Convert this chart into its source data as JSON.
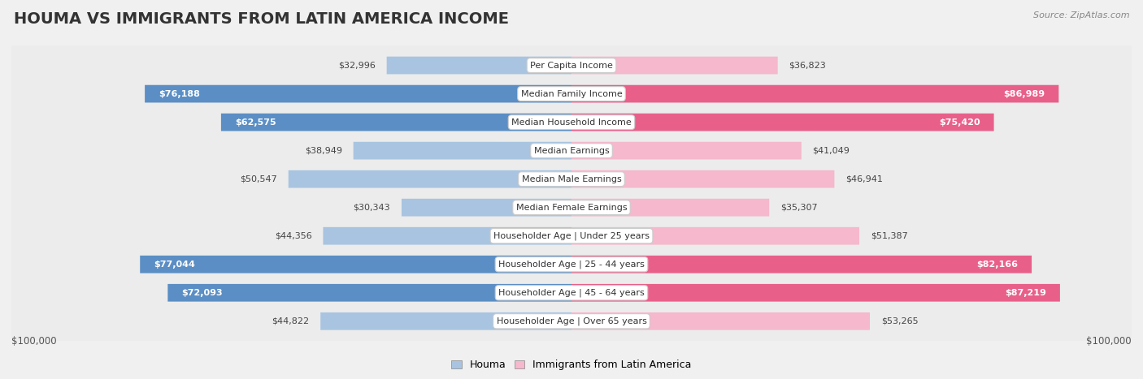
{
  "title": "HOUMA VS IMMIGRANTS FROM LATIN AMERICA INCOME",
  "source": "Source: ZipAtlas.com",
  "categories": [
    "Per Capita Income",
    "Median Family Income",
    "Median Household Income",
    "Median Earnings",
    "Median Male Earnings",
    "Median Female Earnings",
    "Householder Age | Under 25 years",
    "Householder Age | 25 - 44 years",
    "Householder Age | 45 - 64 years",
    "Householder Age | Over 65 years"
  ],
  "houma_values": [
    32996,
    76188,
    62575,
    38949,
    50547,
    30343,
    44356,
    77044,
    72093,
    44822
  ],
  "immigrant_values": [
    36823,
    86989,
    75420,
    41049,
    46941,
    35307,
    51387,
    82166,
    87219,
    53265
  ],
  "houma_labels": [
    "$32,996",
    "$76,188",
    "$62,575",
    "$38,949",
    "$50,547",
    "$30,343",
    "$44,356",
    "$77,044",
    "$72,093",
    "$44,822"
  ],
  "immigrant_labels": [
    "$36,823",
    "$86,989",
    "$75,420",
    "$41,049",
    "$46,941",
    "$35,307",
    "$51,387",
    "$82,166",
    "$87,219",
    "$53,265"
  ],
  "max_value": 100000,
  "houma_color_light": "#a8c4e0",
  "houma_color_dark": "#5b8ec4",
  "immigrant_color_light": "#f5b8cc",
  "immigrant_color_dark": "#e8608a",
  "houma_threshold": 55000,
  "immigrant_threshold": 55000,
  "bg_color": "#f0f0f0",
  "row_bg_odd": "#f8f8f8",
  "row_bg_even": "#ececec",
  "legend_houma": "Houma",
  "legend_immigrant": "Immigrants from Latin America",
  "xlabel_left": "$100,000",
  "xlabel_right": "$100,000",
  "title_fontsize": 14,
  "label_fontsize": 8,
  "category_fontsize": 8
}
